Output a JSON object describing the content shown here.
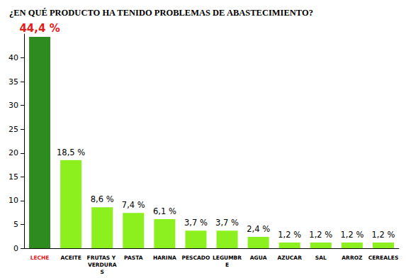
{
  "chart_data": {
    "type": "bar",
    "title": "¿EN QUÉ PRODUCTO HA TENIDO PROBLEMAS DE ABASTECIMIENTO?",
    "categories": [
      "LECHE",
      "ACEITE",
      "FRUTAS Y VERDURAS",
      "PASTA",
      "HARINA",
      "PESCADO",
      "LEGUMBRE",
      "AGUA",
      "AZUCAR",
      "SAL",
      "ARROZ",
      "CEREALES"
    ],
    "values": [
      44.4,
      18.5,
      8.6,
      7.4,
      6.1,
      3.7,
      3.7,
      2.4,
      1.2,
      1.2,
      1.2,
      1.2
    ],
    "value_labels": [
      "44,4 %",
      "18,5 %",
      "8,6 %",
      "7,4 %",
      "6,1 %",
      "3,7 %",
      "3,7 %",
      "2,4 %",
      "1,2 %",
      "1,2 %",
      "1,2 %",
      "1,2 %"
    ],
    "colors": [
      "#2e8b1e",
      "#8cf01e",
      "#8cf01e",
      "#8cf01e",
      "#8cf01e",
      "#8cf01e",
      "#8cf01e",
      "#8cf01e",
      "#8cf01e",
      "#8cf01e",
      "#8cf01e",
      "#8cf01e"
    ],
    "ylim": [
      0,
      45
    ],
    "yticks": [
      0,
      5,
      10,
      15,
      20,
      25,
      30,
      35,
      40
    ],
    "grid": false,
    "data_labels": true
  }
}
